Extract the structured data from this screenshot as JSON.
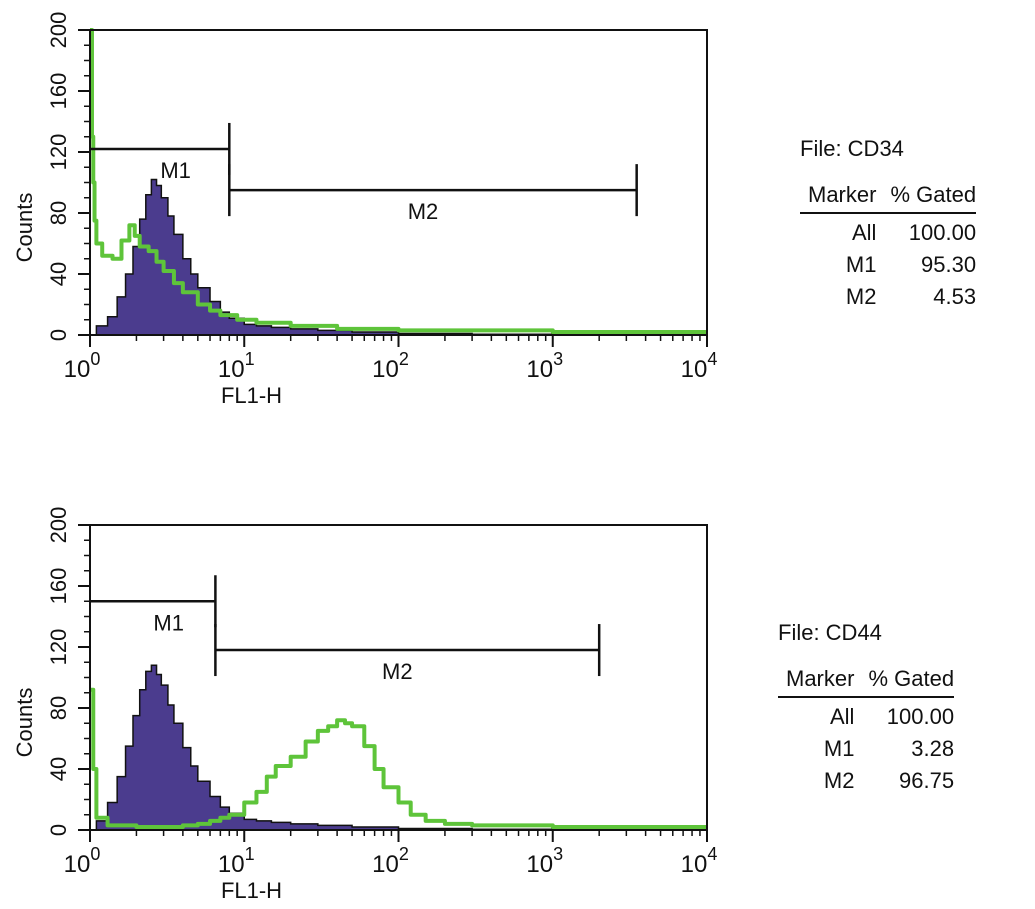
{
  "colors": {
    "filled": "#4b3c8e",
    "filled_outline": "#111111",
    "overlay": "#5ec43a",
    "axis": "#111111"
  },
  "chart_data": [
    {
      "type": "area",
      "file_label": "File: CD34",
      "xlabel": "FL1-H",
      "ylabel": "Counts",
      "x_scale": "log",
      "xlim": [
        1,
        10000
      ],
      "ylim": [
        0,
        200
      ],
      "x_ticks": [
        {
          "value": 1,
          "base": "10",
          "exp": "0"
        },
        {
          "value": 10,
          "base": "10",
          "exp": "1"
        },
        {
          "value": 100,
          "base": "10",
          "exp": "2"
        },
        {
          "value": 1000,
          "base": "10",
          "exp": "3"
        },
        {
          "value": 10000,
          "base": "10",
          "exp": "4"
        }
      ],
      "y_ticks": [
        "0",
        "40",
        "80",
        "120",
        "160",
        "200"
      ],
      "markers": [
        {
          "name": "M1",
          "x_start": 1,
          "x_end": 8,
          "y": 122
        },
        {
          "name": "M2",
          "x_start": 8,
          "x_end": 3500,
          "y": 95
        }
      ],
      "series": [
        {
          "style": "filled",
          "points": [
            [
              1,
              0
            ],
            [
              1.1,
              6
            ],
            [
              1.3,
              12
            ],
            [
              1.5,
              25
            ],
            [
              1.7,
              40
            ],
            [
              1.9,
              58
            ],
            [
              2.1,
              76
            ],
            [
              2.3,
              92
            ],
            [
              2.5,
              102
            ],
            [
              2.7,
              98
            ],
            [
              2.9,
              90
            ],
            [
              3.2,
              78
            ],
            [
              3.5,
              66
            ],
            [
              4,
              50
            ],
            [
              4.5,
              40
            ],
            [
              5,
              31
            ],
            [
              6,
              22
            ],
            [
              7,
              15
            ],
            [
              8,
              11
            ],
            [
              10,
              7
            ],
            [
              12,
              6
            ],
            [
              15,
              5
            ],
            [
              20,
              4
            ],
            [
              30,
              3
            ],
            [
              50,
              2
            ],
            [
              100,
              1
            ],
            [
              300,
              0.5
            ],
            [
              1000,
              0.3
            ],
            [
              10000,
              0
            ]
          ]
        },
        {
          "style": "line",
          "points": [
            [
              1,
              200
            ],
            [
              1.03,
              130
            ],
            [
              1.05,
              100
            ],
            [
              1.07,
              75
            ],
            [
              1.1,
              60
            ],
            [
              1.2,
              52
            ],
            [
              1.4,
              50
            ],
            [
              1.6,
              62
            ],
            [
              1.8,
              72
            ],
            [
              1.95,
              65
            ],
            [
              2.1,
              58
            ],
            [
              2.4,
              55
            ],
            [
              2.7,
              48
            ],
            [
              3,
              42
            ],
            [
              3.5,
              34
            ],
            [
              4,
              28
            ],
            [
              5,
              20
            ],
            [
              6,
              16
            ],
            [
              7,
              13
            ],
            [
              9,
              10
            ],
            [
              12,
              8
            ],
            [
              20,
              6
            ],
            [
              40,
              4
            ],
            [
              100,
              3
            ],
            [
              1000,
              2
            ],
            [
              10000,
              2
            ]
          ]
        }
      ],
      "table": {
        "headers": [
          "Marker",
          "% Gated"
        ],
        "rows": [
          [
            "All",
            "100.00"
          ],
          [
            "M1",
            "95.30"
          ],
          [
            "M2",
            "4.53"
          ]
        ]
      }
    },
    {
      "type": "area",
      "file_label": "File: CD44",
      "xlabel": "FL1-H",
      "ylabel": "Counts",
      "x_scale": "log",
      "xlim": [
        1,
        10000
      ],
      "ylim": [
        0,
        200
      ],
      "x_ticks": [
        {
          "value": 1,
          "base": "10",
          "exp": "0"
        },
        {
          "value": 10,
          "base": "10",
          "exp": "1"
        },
        {
          "value": 100,
          "base": "10",
          "exp": "2"
        },
        {
          "value": 1000,
          "base": "10",
          "exp": "3"
        },
        {
          "value": 10000,
          "base": "10",
          "exp": "4"
        }
      ],
      "y_ticks": [
        "0",
        "40",
        "80",
        "120",
        "160",
        "200"
      ],
      "markers": [
        {
          "name": "M1",
          "x_start": 1,
          "x_end": 6.5,
          "y": 150
        },
        {
          "name": "M2",
          "x_start": 6.5,
          "x_end": 2000,
          "y": 118
        }
      ],
      "series": [
        {
          "style": "filled",
          "points": [
            [
              1,
              0
            ],
            [
              1.1,
              6
            ],
            [
              1.3,
              18
            ],
            [
              1.5,
              35
            ],
            [
              1.7,
              55
            ],
            [
              1.9,
              75
            ],
            [
              2.1,
              92
            ],
            [
              2.3,
              104
            ],
            [
              2.5,
              108
            ],
            [
              2.7,
              102
            ],
            [
              2.9,
              95
            ],
            [
              3.2,
              82
            ],
            [
              3.5,
              70
            ],
            [
              4,
              54
            ],
            [
              4.5,
              42
            ],
            [
              5,
              32
            ],
            [
              6,
              22
            ],
            [
              7,
              15
            ],
            [
              8,
              11
            ],
            [
              10,
              7
            ],
            [
              12,
              6
            ],
            [
              15,
              5
            ],
            [
              20,
              4
            ],
            [
              30,
              3
            ],
            [
              50,
              2
            ],
            [
              100,
              1
            ],
            [
              300,
              0.5
            ],
            [
              1000,
              0.3
            ],
            [
              10000,
              0
            ]
          ]
        },
        {
          "style": "line",
          "points": [
            [
              1,
              92
            ],
            [
              1.05,
              40
            ],
            [
              1.1,
              8
            ],
            [
              1.3,
              3
            ],
            [
              2,
              2
            ],
            [
              3,
              2
            ],
            [
              4,
              3
            ],
            [
              5,
              4
            ],
            [
              6,
              6
            ],
            [
              7,
              8
            ],
            [
              8,
              10
            ],
            [
              10,
              18
            ],
            [
              12,
              25
            ],
            [
              14,
              35
            ],
            [
              16,
              42
            ],
            [
              20,
              48
            ],
            [
              25,
              58
            ],
            [
              30,
              65
            ],
            [
              35,
              68
            ],
            [
              40,
              72
            ],
            [
              45,
              70
            ],
            [
              50,
              68
            ],
            [
              60,
              55
            ],
            [
              70,
              40
            ],
            [
              80,
              28
            ],
            [
              100,
              18
            ],
            [
              120,
              10
            ],
            [
              150,
              6
            ],
            [
              200,
              4
            ],
            [
              300,
              3
            ],
            [
              1000,
              2
            ],
            [
              10000,
              2
            ]
          ]
        }
      ],
      "table": {
        "headers": [
          "Marker",
          "% Gated"
        ],
        "rows": [
          [
            "All",
            "100.00"
          ],
          [
            "M1",
            "3.28"
          ],
          [
            "M2",
            "96.75"
          ]
        ]
      }
    }
  ]
}
